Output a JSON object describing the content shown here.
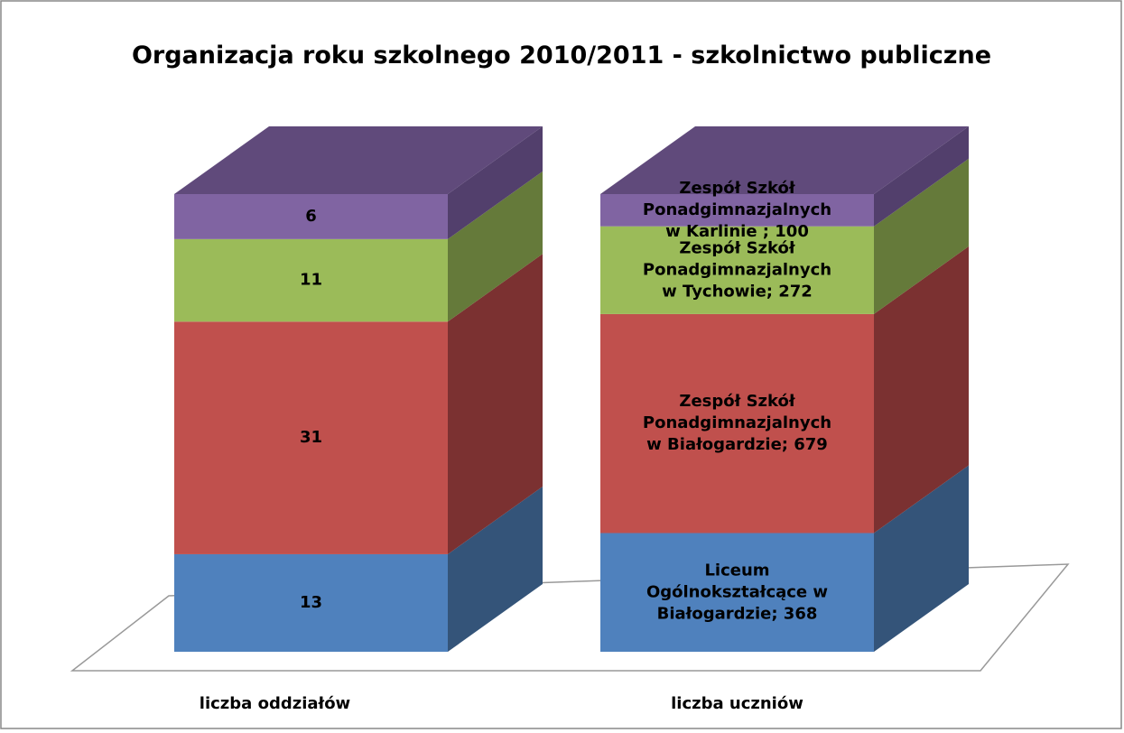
{
  "chart_data": {
    "type": "bar",
    "stacking": "percent",
    "three_d": true,
    "title": "Organizacja roku szkolnego 2010/2011 - szkolnictwo publiczne",
    "categories": [
      "liczba oddziałów",
      "liczba uczniów"
    ],
    "series": [
      {
        "color": "#4f81bd",
        "side_color": "#345479",
        "values": [
          13,
          368
        ],
        "value_labels": [
          "13",
          "Liceum Ogólnokształcące w Białogardzie; 368"
        ]
      },
      {
        "color": "#c0504d",
        "side_color": "#7b3131",
        "values": [
          31,
          679
        ],
        "value_labels": [
          "31",
          "Zespół Szkół Ponadgimnazjalnych w Białogardzie; 679"
        ]
      },
      {
        "color": "#9bbb59",
        "side_color": "#657a3a",
        "values": [
          11,
          272
        ],
        "value_labels": [
          "11",
          "Zespół Szkół Ponadgimnazjalnych w Tychowie; 272"
        ]
      },
      {
        "color": "#8064a2",
        "side_color": "#523f6c",
        "top_color": "#604a7b",
        "values": [
          6,
          100
        ],
        "value_labels": [
          "6",
          "Zespół Szkół Ponadgimnazjalnych w Karlinie ; 100"
        ]
      }
    ]
  }
}
